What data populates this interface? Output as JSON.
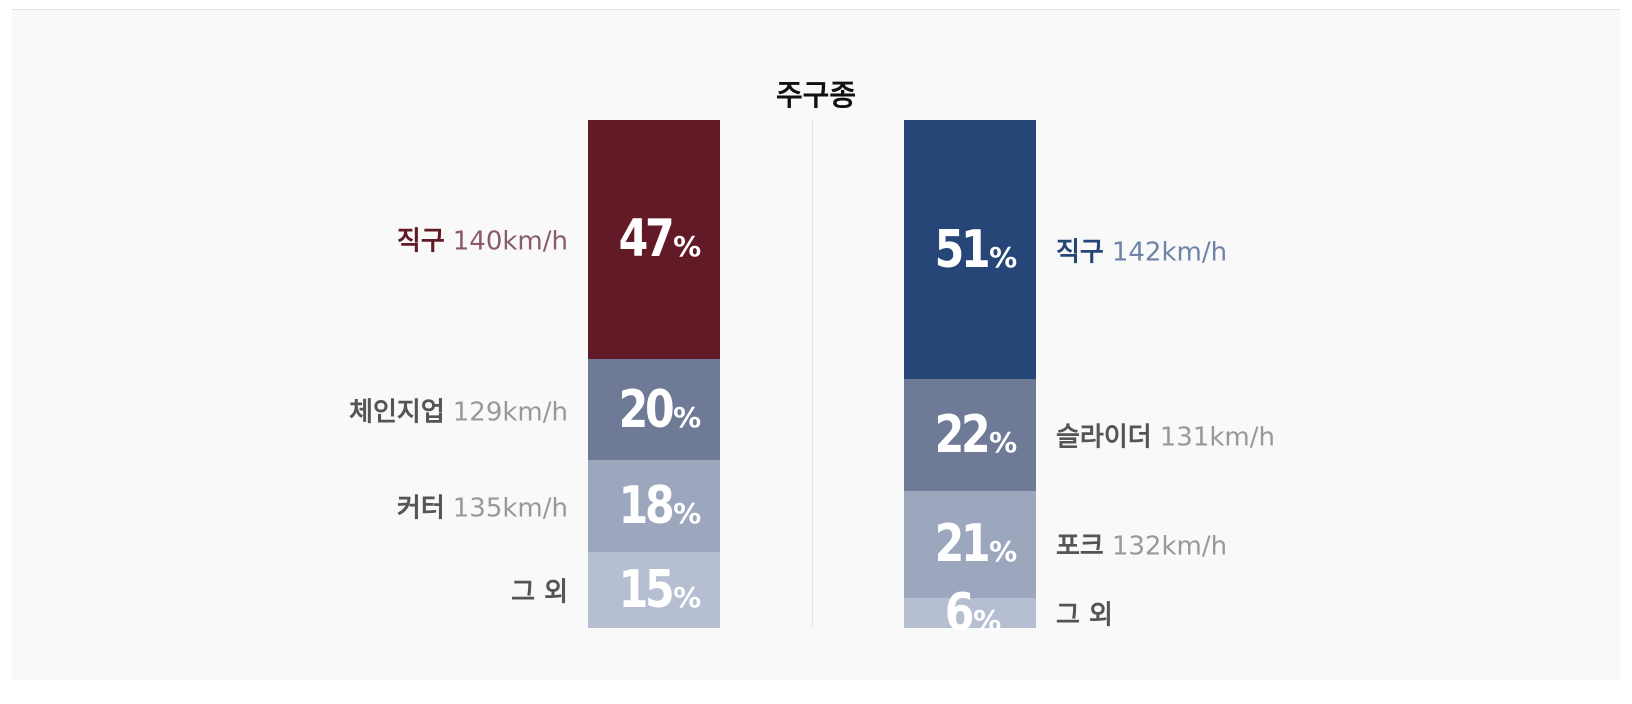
{
  "title": "주구종",
  "colors": {
    "away_primary": "#621a26",
    "home_primary": "#264677",
    "rank2": "#6f7a96",
    "rank3": "#9ca7be",
    "rank4": "#b6bfd1"
  },
  "chart_data": {
    "type": "bar",
    "title": "주구종",
    "stacked": true,
    "series": [
      {
        "side": "left",
        "pitches": [
          {
            "name": "직구",
            "speed": "140km/h",
            "percent": 47,
            "percent_label": "47"
          },
          {
            "name": "체인지업",
            "speed": "129km/h",
            "percent": 20,
            "percent_label": "20"
          },
          {
            "name": "커터",
            "speed": "135km/h",
            "percent": 18,
            "percent_label": "18"
          },
          {
            "name": "그 외",
            "speed": "",
            "percent": 15,
            "percent_label": "15"
          }
        ]
      },
      {
        "side": "right",
        "pitches": [
          {
            "name": "직구",
            "speed": "142km/h",
            "percent": 51,
            "percent_label": "51"
          },
          {
            "name": "슬라이더",
            "speed": "131km/h",
            "percent": 22,
            "percent_label": "22"
          },
          {
            "name": "포크",
            "speed": "132km/h",
            "percent": 21,
            "percent_label": "21"
          },
          {
            "name": "그 외",
            "speed": "",
            "percent": 6,
            "percent_label": "6"
          }
        ]
      }
    ],
    "percent_sign": "%"
  }
}
